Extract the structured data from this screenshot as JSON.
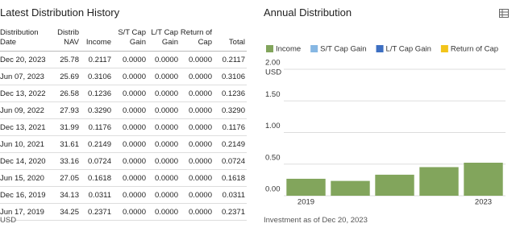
{
  "table": {
    "title": "Latest Distribution History",
    "headers": [
      "Distribution Date",
      "Distrib NAV",
      "Income",
      "S/T Cap Gain",
      "L/T Cap Gain",
      "Return of Cap",
      "Total"
    ],
    "rows": [
      [
        "Dec 20, 2023",
        "25.78",
        "0.2117",
        "0.0000",
        "0.0000",
        "0.0000",
        "0.2117"
      ],
      [
        "Jun 07, 2023",
        "25.69",
        "0.3106",
        "0.0000",
        "0.0000",
        "0.0000",
        "0.3106"
      ],
      [
        "Dec 13, 2022",
        "26.58",
        "0.1236",
        "0.0000",
        "0.0000",
        "0.0000",
        "0.1236"
      ],
      [
        "Jun 09, 2022",
        "27.93",
        "0.3290",
        "0.0000",
        "0.0000",
        "0.0000",
        "0.3290"
      ],
      [
        "Dec 13, 2021",
        "31.99",
        "0.1176",
        "0.0000",
        "0.0000",
        "0.0000",
        "0.1176"
      ],
      [
        "Jun 10, 2021",
        "31.61",
        "0.2149",
        "0.0000",
        "0.0000",
        "0.0000",
        "0.2149"
      ],
      [
        "Dec 14, 2020",
        "33.16",
        "0.0724",
        "0.0000",
        "0.0000",
        "0.0000",
        "0.0724"
      ],
      [
        "Jun 15, 2020",
        "27.05",
        "0.1618",
        "0.0000",
        "0.0000",
        "0.0000",
        "0.1618"
      ],
      [
        "Dec 16, 2019",
        "34.13",
        "0.0311",
        "0.0000",
        "0.0000",
        "0.0000",
        "0.0311"
      ],
      [
        "Jun 17, 2019",
        "34.25",
        "0.2371",
        "0.0000",
        "0.0000",
        "0.0000",
        "0.2371"
      ]
    ],
    "footnote": "USD"
  },
  "chart_data": {
    "type": "bar",
    "title": "Annual Distribution",
    "y_unit": "USD",
    "footnote": "Investment as of Dec 20, 2023",
    "categories": [
      "2019",
      null,
      null,
      null,
      "2023"
    ],
    "series": [
      {
        "name": "Income",
        "color": "#82a55c",
        "values": [
          0.2682,
          0.2342,
          0.3325,
          0.4526,
          0.5223
        ]
      },
      {
        "name": "S/T Cap Gain",
        "color": "#86b7e3",
        "values": [
          0,
          0,
          0,
          0,
          0
        ]
      },
      {
        "name": "L/T Cap Gain",
        "color": "#3d6fc2",
        "values": [
          0,
          0,
          0,
          0,
          0
        ]
      },
      {
        "name": "Return of Cap",
        "color": "#f2c41a",
        "values": [
          0,
          0,
          0,
          0,
          0
        ]
      }
    ],
    "ylim": [
      0,
      2
    ],
    "yticks": [
      {
        "value": 0,
        "label": "0.00"
      },
      {
        "value": 0.5,
        "label": "0.50"
      },
      {
        "value": 1,
        "label": "1.00"
      },
      {
        "value": 1.5,
        "label": "1.50"
      },
      {
        "value": 2,
        "label": "2.00"
      }
    ],
    "grid": true
  }
}
